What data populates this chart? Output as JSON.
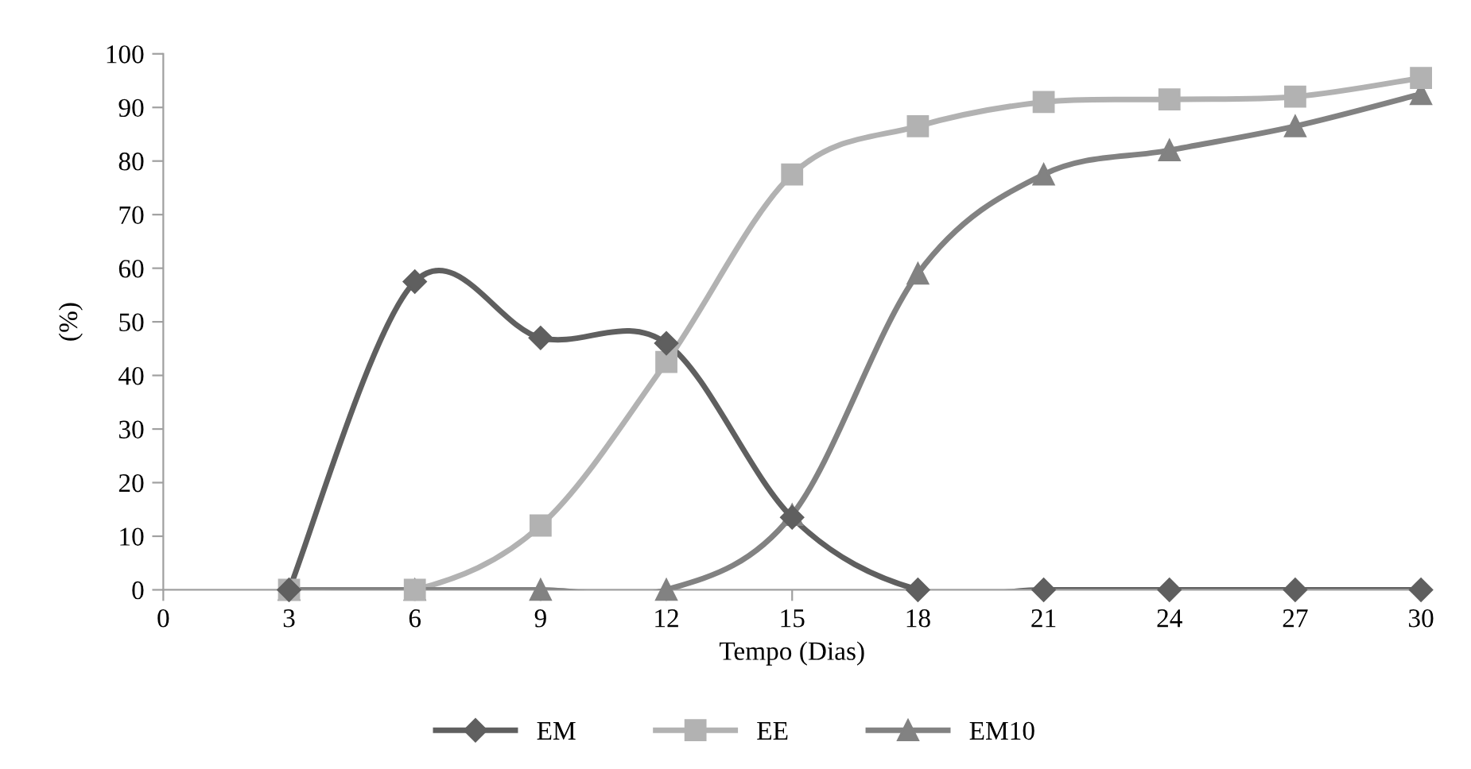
{
  "chart_data": {
    "type": "line",
    "xlabel": "Tempo (Dias)",
    "ylabel": "(%)",
    "x": [
      3,
      6,
      9,
      12,
      15,
      18,
      21,
      24,
      27,
      30
    ],
    "series": [
      {
        "name": "EM",
        "color": "#5f5f5f",
        "marker": "diamond",
        "values": [
          0,
          57.5,
          47,
          46,
          13.5,
          0,
          0,
          0,
          0,
          0
        ]
      },
      {
        "name": "EE",
        "color": "#b2b2b2",
        "marker": "square",
        "values": [
          0,
          0,
          12,
          42.5,
          77.5,
          86.5,
          91,
          91.5,
          92,
          95.5
        ]
      },
      {
        "name": "EM10",
        "color": "#828282",
        "marker": "triangle",
        "values": [
          0,
          0,
          0,
          0,
          14,
          59,
          77.5,
          82,
          86.5,
          92.5
        ]
      }
    ],
    "xlim": [
      0,
      30
    ],
    "xticks": [
      0,
      3,
      6,
      9,
      12,
      15,
      18,
      21,
      24,
      27,
      30
    ],
    "ylim": [
      0,
      100
    ],
    "yticks": [
      0,
      10,
      20,
      30,
      40,
      50,
      60,
      70,
      80,
      90,
      100
    ],
    "grid": false,
    "legend": "bottom",
    "line_style": "solid"
  }
}
